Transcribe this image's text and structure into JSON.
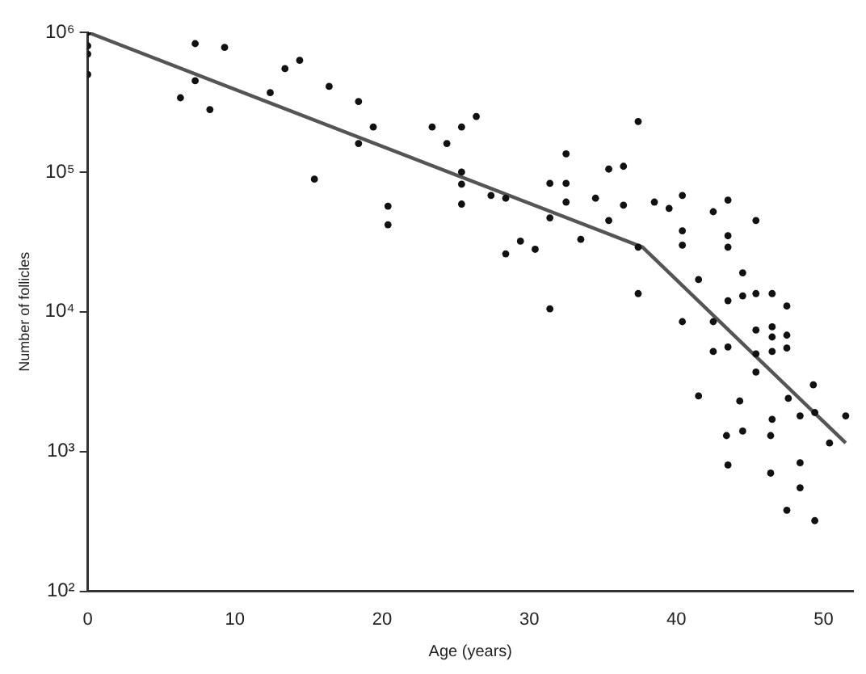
{
  "chart_data": {
    "type": "scatter",
    "xlabel": "Age (years)",
    "ylabel": "Number of follicles",
    "log": "y",
    "grid": false,
    "legend": false,
    "xlim": [
      0,
      52
    ],
    "xticks": [
      0,
      10,
      20,
      30,
      40,
      50
    ],
    "ylim": [
      100,
      1000000
    ],
    "yticks": [
      {
        "value": 100,
        "label": "10²"
      },
      {
        "value": 1000,
        "label": "10³"
      },
      {
        "value": 10000,
        "label": "10⁴"
      },
      {
        "value": 100000,
        "label": "10⁵"
      },
      {
        "value": 1000000,
        "label": "10⁶"
      }
    ],
    "series": [
      {
        "type": "scatter",
        "marker": "circle",
        "color": "#111111",
        "x": [
          0,
          0,
          0,
          0,
          6.3,
          7.3,
          7.3,
          8.3,
          9.3,
          12.4,
          13.4,
          14.4,
          15.4,
          16.4,
          18.4,
          18.4,
          19.4,
          20.4,
          20.4,
          23.4,
          24.4,
          25.4,
          25.4,
          25.4,
          25.4,
          26.4,
          27.4,
          28.4,
          28.4,
          29.4,
          30.4,
          31.4,
          31.4,
          31.4,
          32.5,
          32.5,
          32.5,
          33.5,
          34.5,
          35.4,
          35.4,
          36.4,
          36.4,
          37.4,
          37.4,
          37.4,
          38.5,
          39.5,
          40.4,
          40.4,
          40.4,
          40.4,
          41.5,
          41.5,
          42.5,
          42.5,
          42.5,
          43.5,
          43.5,
          43.5,
          43.5,
          43.5,
          43.4,
          43.5,
          44.5,
          44.5,
          44.3,
          44.5,
          45.4,
          45.4,
          45.4,
          45.4,
          45.4,
          46.5,
          46.5,
          46.5,
          46.5,
          46.5,
          46.4,
          46.4,
          47.5,
          47.5,
          47.5,
          47.6,
          47.5,
          48.4,
          48.4,
          48.4,
          49.3,
          49.4,
          49.4,
          50.4,
          51.5
        ],
        "values": [
          1000000,
          800000,
          700000,
          500000,
          340000,
          830000,
          450000,
          280000,
          780000,
          370000,
          550000,
          630000,
          89000,
          410000,
          320000,
          160000,
          210000,
          57000,
          42000,
          210000,
          160000,
          210000,
          100000,
          82000,
          59000,
          250000,
          68000,
          65000,
          26000,
          32000,
          28000,
          83000,
          47000,
          10500,
          135000,
          83000,
          61000,
          33000,
          65000,
          105000,
          45000,
          110000,
          58000,
          230000,
          29000,
          13500,
          61000,
          55000,
          68000,
          38000,
          30000,
          8500,
          17000,
          2500,
          52000,
          8500,
          5200,
          63000,
          35000,
          29000,
          12000,
          5600,
          1300,
          800,
          19000,
          13000,
          2300,
          1400,
          45000,
          13500,
          7400,
          5000,
          3700,
          13500,
          7800,
          6600,
          5200,
          1700,
          1300,
          700,
          11000,
          6800,
          5500,
          2400,
          380,
          1800,
          830,
          550,
          3000,
          1900,
          320,
          1150,
          1800
        ]
      },
      {
        "type": "line",
        "marker": "none",
        "color": "#555555",
        "x": [
          0,
          37.7,
          51.5
        ],
        "values": [
          1000000,
          29000,
          1150
        ]
      }
    ]
  }
}
